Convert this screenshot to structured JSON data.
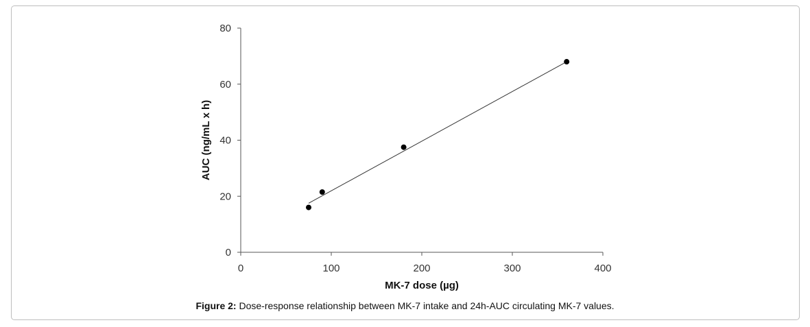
{
  "chart_data": {
    "type": "scatter",
    "x_label": "MK-7 dose (µg)",
    "y_label": "AUC (ng/mL x h)",
    "xlim": [
      0,
      400
    ],
    "ylim": [
      0,
      80
    ],
    "x_ticks": [
      0,
      100,
      200,
      300,
      400
    ],
    "y_ticks": [
      0,
      20,
      40,
      60,
      80
    ],
    "grid": false,
    "series": [
      {
        "points": [
          {
            "x": 75,
            "y": 16
          },
          {
            "x": 90,
            "y": 21.5
          },
          {
            "x": 180,
            "y": 37.5
          },
          {
            "x": 360,
            "y": 68
          }
        ],
        "color": "#000000"
      }
    ],
    "trendline": {
      "type": "linear",
      "from": {
        "x": 75,
        "y": 17.5
      },
      "to": {
        "x": 360,
        "y": 68
      },
      "color": "#333333"
    }
  },
  "caption": {
    "label": "Figure 2:",
    "text": " Dose-response relationship between MK-7 intake and 24h-AUC circulating MK-7 values."
  }
}
